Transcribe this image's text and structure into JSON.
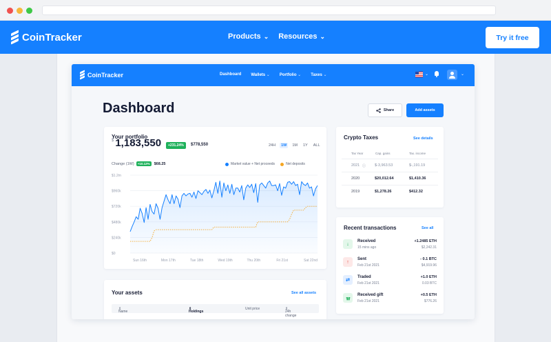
{
  "site": {
    "brand": "CoinTracker",
    "nav": [
      "Products",
      "Resources"
    ],
    "cta": "Try it free",
    "accent": "#1580ff"
  },
  "app": {
    "brand": "CoinTracker",
    "nav": [
      "Dashboard",
      "Wallets",
      "Portfolio",
      "Taxes"
    ],
    "title": "Dashboard",
    "share_label": "Share",
    "add_label": "Add assets"
  },
  "portfolio": {
    "title": "Your portfolio",
    "currency": "$",
    "value": "1,183,550",
    "gain_badge": "+231.24%",
    "gain_amount": "$778,550",
    "ranges": [
      "24H",
      "1W",
      "1M",
      "1Y",
      "ALL"
    ],
    "active_range": "1W",
    "change_label": "Change (1W)",
    "change_badge": "+10.12%",
    "change_amount": "$68.25",
    "legend": [
      "Market value + Net proceeds",
      "Net deposits"
    ]
  },
  "chart_data": {
    "type": "line",
    "y_ticks": [
      "$0",
      "$240k",
      "$480k",
      "$720k",
      "$960k",
      "$1.2m"
    ],
    "x_ticks": [
      "Sun 16th",
      "Mon 17th",
      "Tue 18th",
      "Wed 19th",
      "Thu 20th",
      "Fri 21st",
      "Sat 22nd"
    ],
    "ylim": [
      0,
      1200
    ],
    "series": [
      {
        "name": "Market value + Net proceeds",
        "color": "#1580ff",
        "values": [
          330,
          410,
          480,
          560,
          520,
          690,
          610,
          470,
          700,
          520,
          750,
          640,
          600,
          760,
          690,
          520,
          700,
          800,
          900,
          820,
          760,
          900,
          760,
          880,
          830,
          700,
          880,
          920,
          880,
          910,
          920,
          860,
          940,
          840,
          960,
          930,
          900,
          950,
          980,
          920,
          970,
          850,
          960,
          1090,
          920,
          1110,
          860,
          1080,
          960,
          1050,
          920,
          1060,
          900,
          1000,
          1000,
          940,
          1040,
          820,
          1000,
          1050,
          1010,
          1060,
          930,
          1070,
          780,
          1050,
          1080,
          1040,
          1000,
          1080,
          1110,
          1040,
          1040,
          1050,
          960,
          1070,
          890,
          1020,
          1000,
          1090,
          1100,
          1060,
          1100,
          1040,
          1060,
          900,
          1100,
          1060,
          1040,
          1080,
          1000,
          1020,
          880,
          990,
          1040
        ]
      },
      {
        "name": "Net deposits",
        "color": "#f5a623",
        "values": [
          180,
          180,
          180,
          180,
          180,
          180,
          180,
          180,
          180,
          180,
          180,
          240,
          340,
          360,
          360,
          360,
          360,
          360,
          360,
          360,
          360,
          360,
          360,
          360,
          360,
          360,
          360,
          360,
          360,
          360,
          360,
          360,
          360,
          360,
          360,
          360,
          360,
          360,
          360,
          360,
          360,
          360,
          400,
          400,
          400,
          400,
          400,
          400,
          400,
          400,
          400,
          400,
          400,
          400,
          400,
          400,
          400,
          400,
          400,
          400,
          400,
          400,
          400,
          400,
          480,
          480,
          480,
          480,
          480,
          480,
          480,
          480,
          480,
          480,
          480,
          480,
          480,
          480,
          480,
          480,
          520,
          600,
          660,
          660,
          660,
          660,
          660,
          660,
          700,
          720,
          720,
          720,
          720,
          720,
          720
        ]
      }
    ]
  },
  "taxes": {
    "title": "Crypto Taxes",
    "details_link": "See details",
    "headers": [
      "Tax Year",
      "Cap. gains",
      "Tax. income"
    ],
    "rows": [
      {
        "year": "2021",
        "gains": "$-3,963.53",
        "income": "$-,191.19"
      },
      {
        "year": "2020",
        "gains": "$20,012.64",
        "income": "$1,410.36"
      },
      {
        "year": "2019",
        "gains": "$1,278.26",
        "income": "$412.32"
      }
    ]
  },
  "transactions": {
    "title": "Recent transactions",
    "see_all": "See all",
    "items": [
      {
        "type": "Received",
        "time": "15 mins ago",
        "amount": "+1.2485 ETH",
        "fiat": "$2,242.31",
        "icon": "arrow-down-icon",
        "icon_color": "#1fb15b",
        "icon_bg": "#e3f7ea"
      },
      {
        "type": "Sent",
        "time": "Feb 21st 2021",
        "amount": "- 0.1 BTC",
        "fiat": "$4,919.96",
        "icon": "arrow-up-icon",
        "icon_color": "#e5483f",
        "icon_bg": "#fde8e7"
      },
      {
        "type": "Traded",
        "time": "Feb 21st 2021",
        "amount": "+1.0 ETH",
        "fiat": "0.03 BTC",
        "icon": "swap-icon",
        "icon_color": "#1580ff",
        "icon_bg": "#e4efff"
      },
      {
        "type": "Received gift",
        "time": "Feb 21st 2021",
        "amount": "+0.5 ETH",
        "fiat": "$776.26",
        "icon": "gift-icon",
        "icon_color": "#1fb15b",
        "icon_bg": "#e3f7ea"
      }
    ]
  },
  "assets": {
    "title": "Your assets",
    "see_all": "See all assets",
    "columns": [
      "Name",
      "Holdings",
      "Unit price",
      "24h change"
    ]
  }
}
